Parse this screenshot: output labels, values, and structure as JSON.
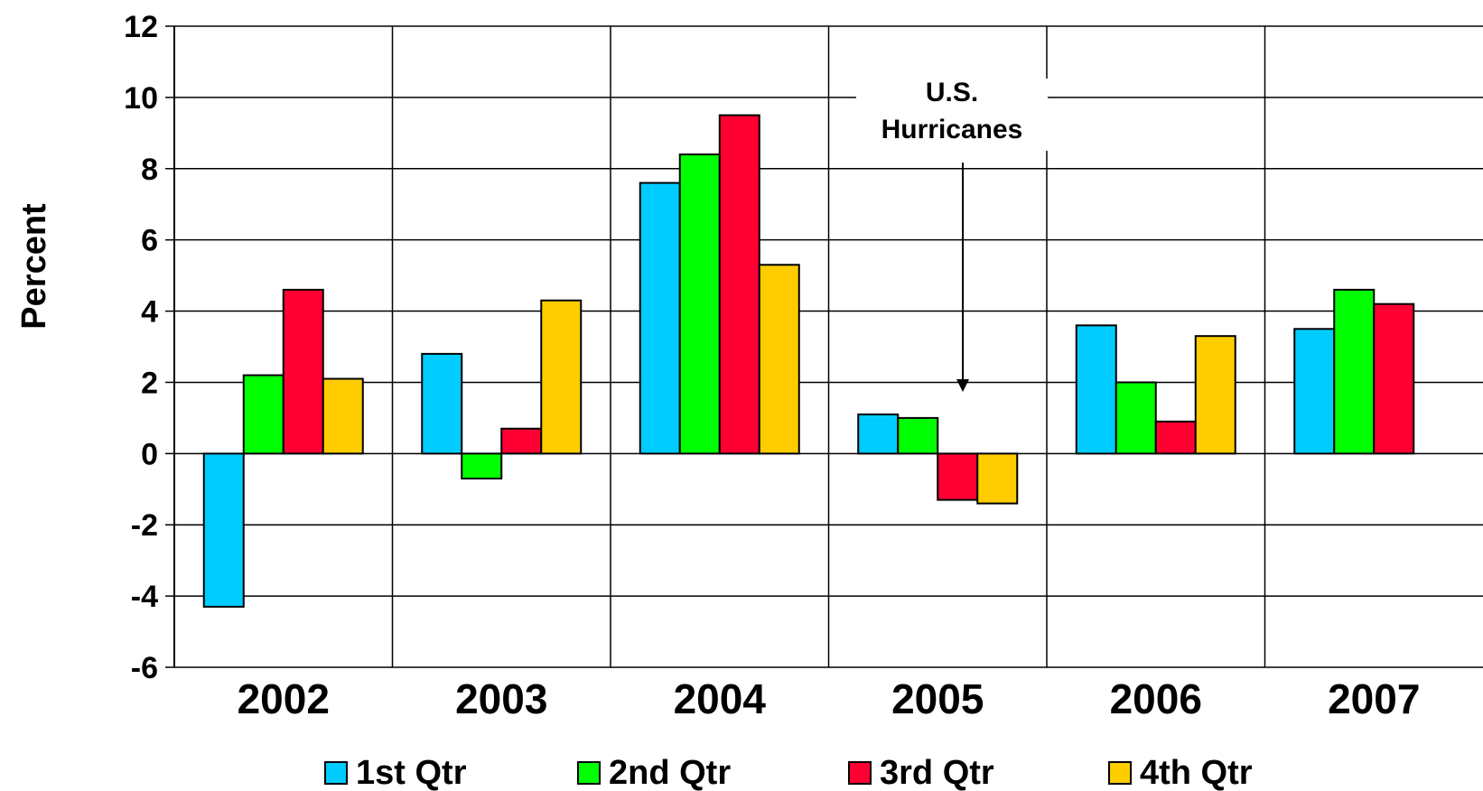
{
  "chart_data": {
    "type": "bar",
    "categories": [
      "2002",
      "2003",
      "2004",
      "2005",
      "2006",
      "2007"
    ],
    "series": [
      {
        "name": "1st Qtr",
        "color": "#00CCFF",
        "values": [
          -4.3,
          2.8,
          7.6,
          1.1,
          3.6,
          3.5
        ]
      },
      {
        "name": "2nd Qtr",
        "color": "#00FF00",
        "values": [
          2.2,
          -0.7,
          8.4,
          1.0,
          2.0,
          4.6
        ]
      },
      {
        "name": "3rd Qtr",
        "color": "#FF0033",
        "values": [
          4.6,
          0.7,
          9.5,
          -1.3,
          0.9,
          4.2
        ]
      },
      {
        "name": "4th Qtr",
        "color": "#FFCC00",
        "values": [
          2.1,
          4.3,
          5.3,
          -1.4,
          3.3,
          null
        ]
      }
    ],
    "title": "",
    "xlabel": "",
    "ylabel": "Percent",
    "ylim": [
      -6,
      12
    ],
    "yticks": [
      "12",
      "10",
      "8",
      "6",
      "4",
      "2",
      "0",
      "-2",
      "-4",
      "-6"
    ],
    "grid": true,
    "legend_position": "bottom",
    "annotation": {
      "lines": [
        "U.S.",
        "Hurricanes"
      ],
      "points_to_category": "2005"
    }
  }
}
